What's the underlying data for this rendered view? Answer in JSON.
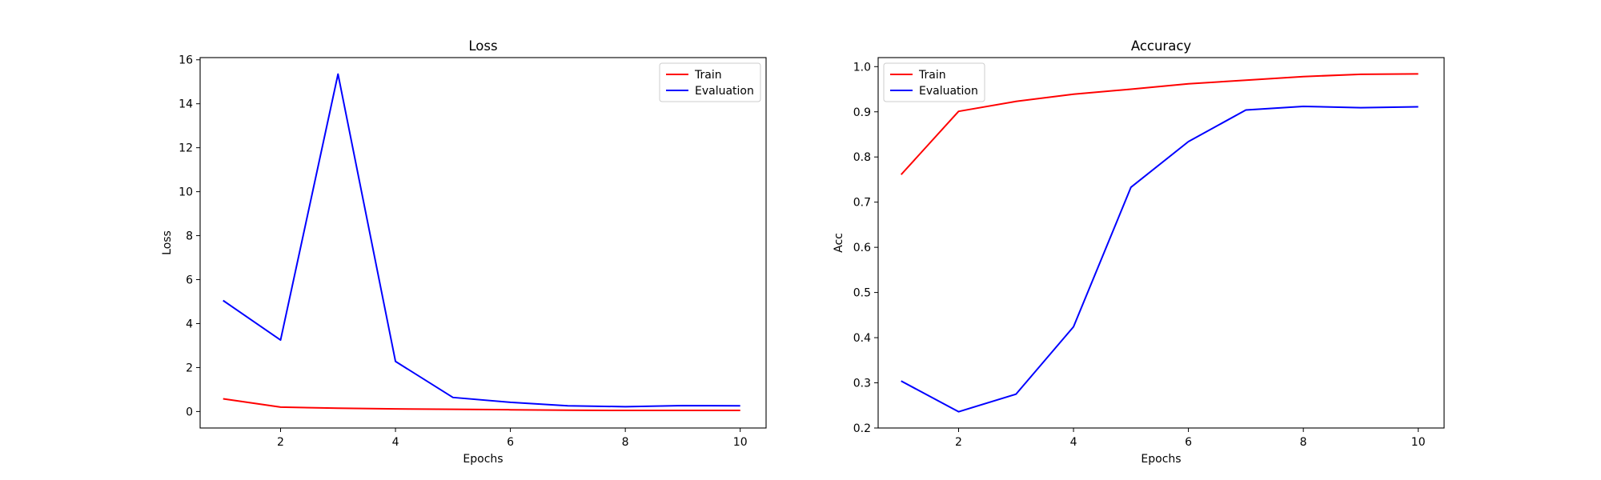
{
  "chart_data": [
    {
      "type": "line",
      "title": "Loss",
      "xlabel": "Epochs",
      "ylabel": "Loss",
      "x": [
        1,
        2,
        3,
        4,
        5,
        6,
        7,
        8,
        9,
        10
      ],
      "xlim": [
        0.6,
        10.45
      ],
      "ylim": [
        -0.75,
        16.1
      ],
      "xticks": [
        2,
        4,
        6,
        8,
        10
      ],
      "yticks": [
        0,
        2,
        4,
        6,
        8,
        10,
        12,
        14,
        16
      ],
      "grid": false,
      "legend_position": "top-right",
      "series": [
        {
          "name": "Train",
          "color": "#ff0000",
          "values": [
            0.58,
            0.2,
            0.15,
            0.12,
            0.1,
            0.08,
            0.06,
            0.05,
            0.05,
            0.05
          ]
        },
        {
          "name": "Evaluation",
          "color": "#0000ff",
          "values": [
            5.05,
            3.25,
            15.35,
            2.28,
            0.64,
            0.42,
            0.26,
            0.22,
            0.27,
            0.26
          ]
        }
      ]
    },
    {
      "type": "line",
      "title": "Accuracy",
      "xlabel": "Epochs",
      "ylabel": "Acc",
      "x": [
        1,
        2,
        3,
        4,
        5,
        6,
        7,
        8,
        9,
        10
      ],
      "xlim": [
        0.6,
        10.45
      ],
      "ylim": [
        0.2,
        1.02
      ],
      "xticks": [
        2,
        4,
        6,
        8,
        10
      ],
      "yticks": [
        0.2,
        0.3,
        0.4,
        0.5,
        0.6,
        0.7,
        0.8,
        0.9,
        1.0
      ],
      "ytick_labels": [
        "0.2",
        "0.3",
        "0.4",
        "0.5",
        "0.6",
        "0.7",
        "0.8",
        "0.9",
        "1.0"
      ],
      "grid": false,
      "legend_position": "top-left",
      "series": [
        {
          "name": "Train",
          "color": "#ff0000",
          "values": [
            0.761,
            0.901,
            0.923,
            0.939,
            0.95,
            0.962,
            0.97,
            0.978,
            0.983,
            0.984
          ]
        },
        {
          "name": "Evaluation",
          "color": "#0000ff",
          "values": [
            0.304,
            0.236,
            0.275,
            0.424,
            0.733,
            0.834,
            0.904,
            0.912,
            0.909,
            0.911
          ]
        }
      ]
    }
  ]
}
